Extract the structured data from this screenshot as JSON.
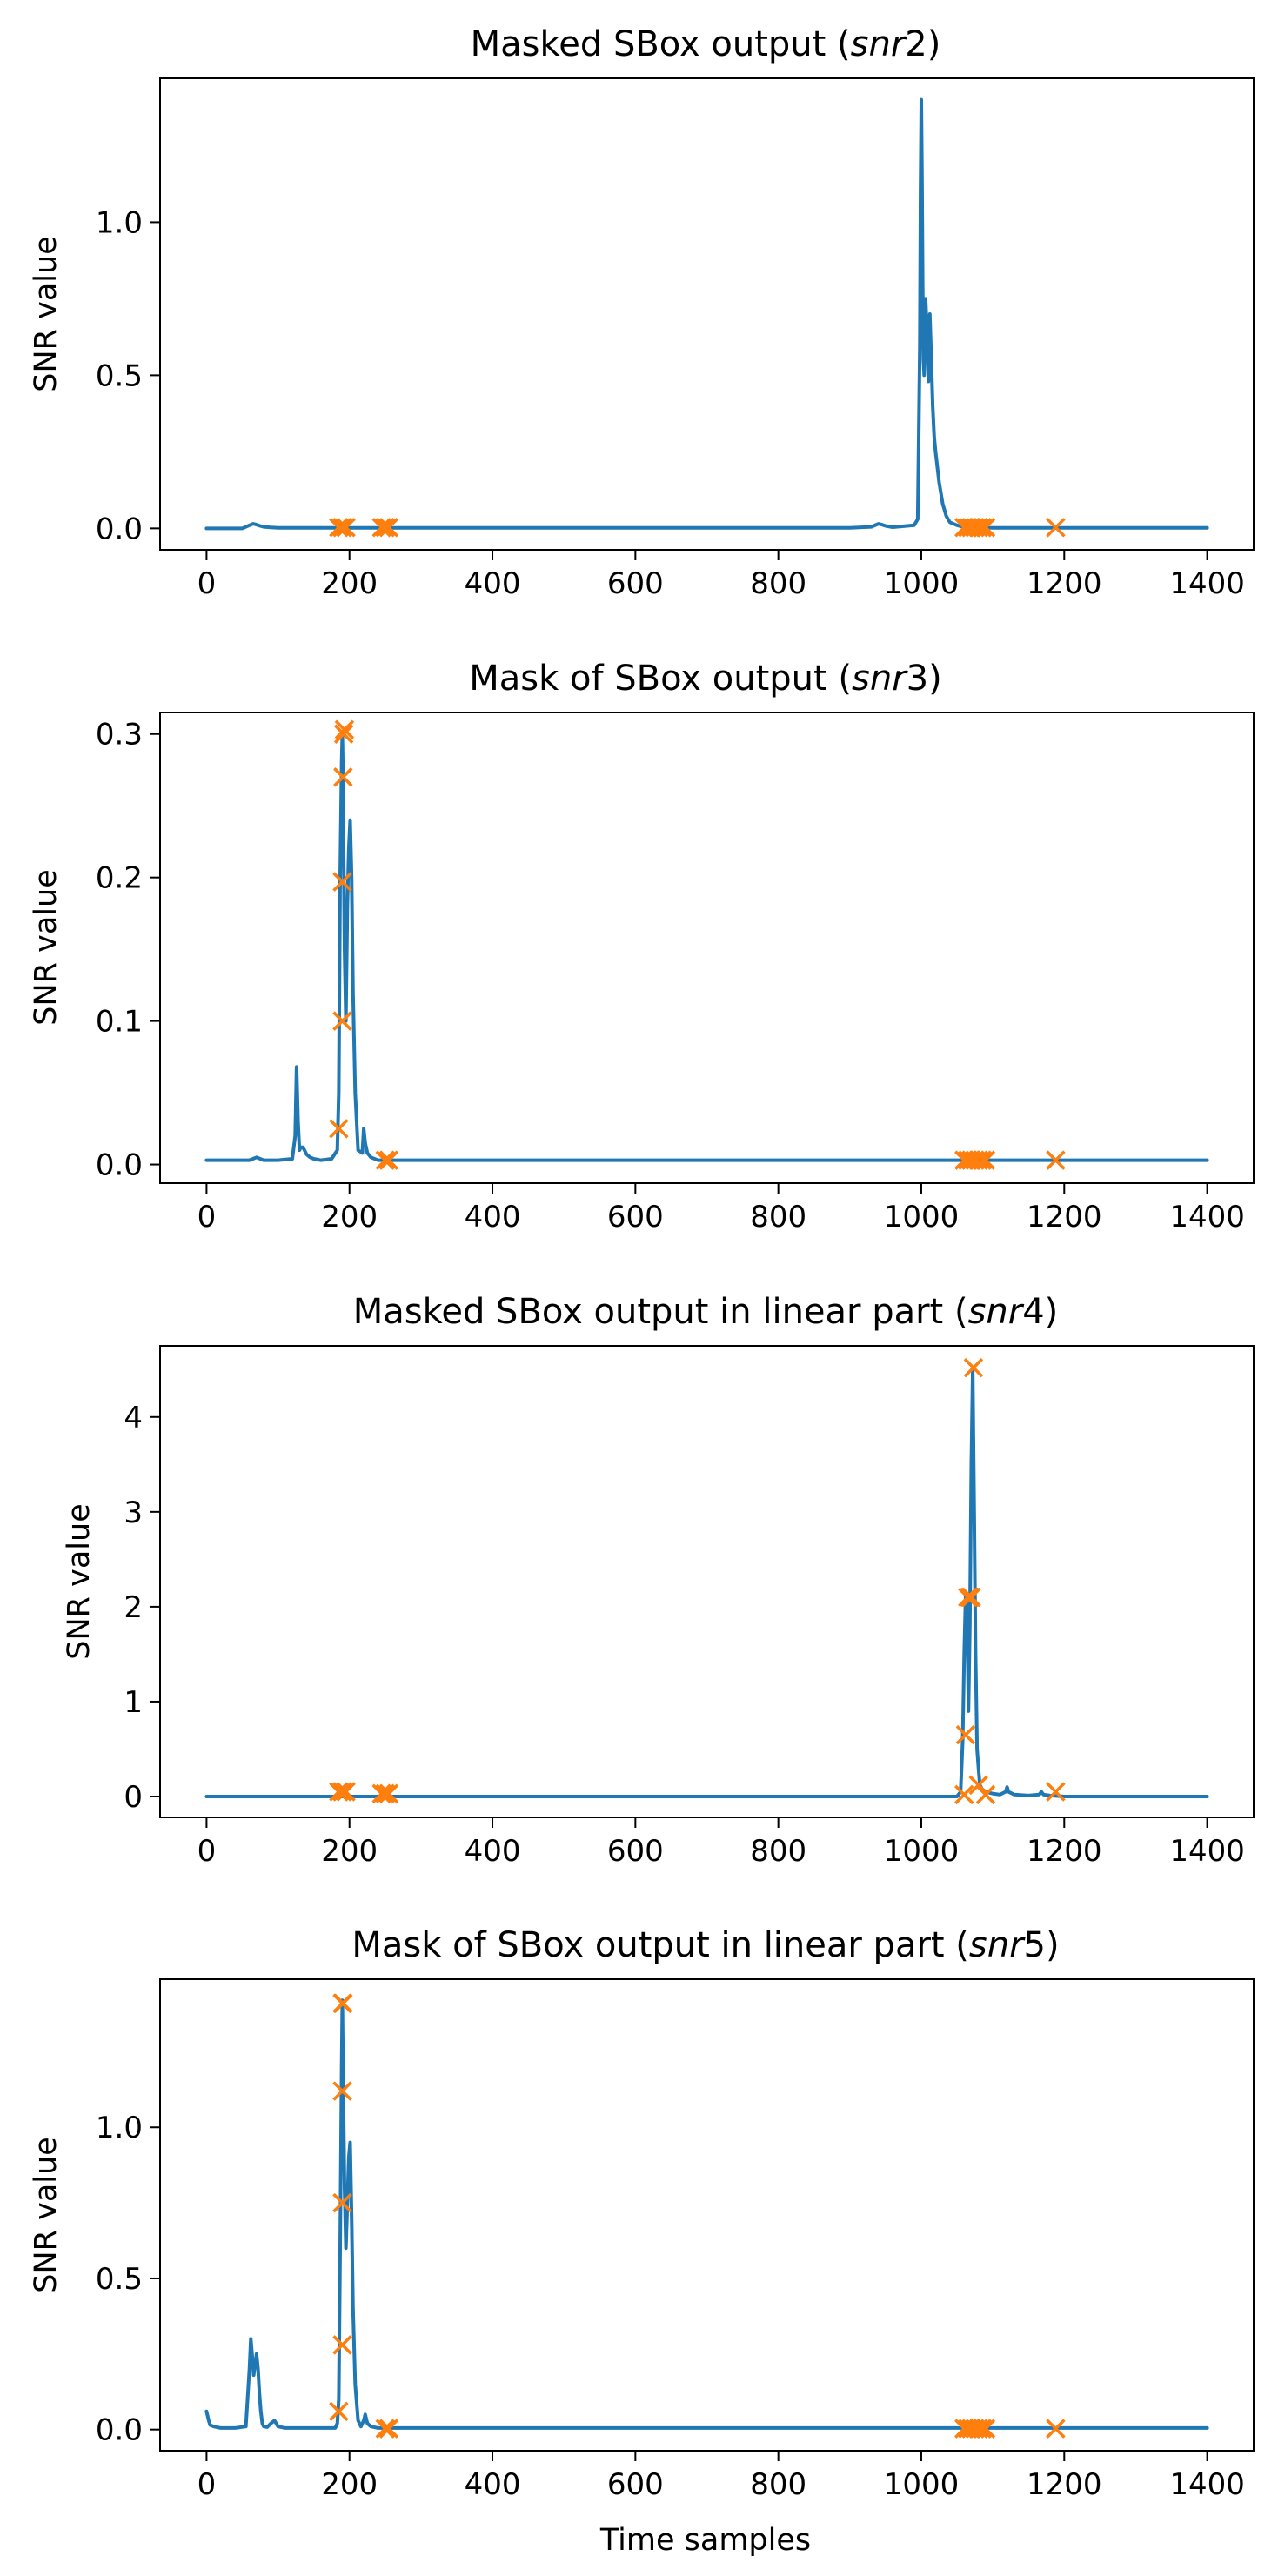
{
  "figure": {
    "colors": {
      "line": "#1f77b4",
      "marker": "#ff7f0e",
      "axes": "#000000",
      "background": "#ffffff"
    }
  },
  "chart_data": [
    {
      "type": "line",
      "title": "Masked SBox output (snr2)",
      "title_main": "Masked SBox output (",
      "title_italic": "snr",
      "title_tail": "2)",
      "xlabel": "",
      "ylabel": "SNR value",
      "xlim": [
        -65,
        1465
      ],
      "ylim": [
        -0.07,
        1.47
      ],
      "xticks": [
        0,
        200,
        400,
        600,
        800,
        1000,
        1200,
        1400
      ],
      "yticks": [
        0.0,
        0.5,
        1.0
      ],
      "ytick_labels": [
        "0.0",
        "0.5",
        "1.0"
      ],
      "grid": false,
      "series": [
        {
          "kind": "line",
          "x": [
            0,
            50,
            60,
            65,
            70,
            75,
            80,
            90,
            100,
            150,
            200,
            300,
            500,
            700,
            900,
            930,
            940,
            945,
            950,
            960,
            990,
            995,
            998,
            999,
            1000,
            1001,
            1002,
            1003,
            1004,
            1006,
            1008,
            1010,
            1012,
            1014,
            1016,
            1018,
            1020,
            1025,
            1030,
            1035,
            1040,
            1050,
            1060,
            1100,
            1200,
            1300,
            1400
          ],
          "y": [
            0.0,
            0.0,
            0.01,
            0.015,
            0.012,
            0.008,
            0.005,
            0.003,
            0.002,
            0.002,
            0.002,
            0.002,
            0.002,
            0.002,
            0.002,
            0.005,
            0.015,
            0.012,
            0.008,
            0.004,
            0.01,
            0.03,
            0.6,
            1.1,
            1.4,
            1.15,
            0.8,
            0.55,
            0.5,
            0.75,
            0.65,
            0.48,
            0.7,
            0.55,
            0.4,
            0.3,
            0.25,
            0.15,
            0.08,
            0.04,
            0.02,
            0.01,
            0.004,
            0.002,
            0.002,
            0.002,
            0.002
          ]
        },
        {
          "kind": "markers",
          "marker": "x",
          "x": [
            185,
            190,
            195,
            245,
            250,
            255,
            1060,
            1065,
            1070,
            1075,
            1080,
            1085,
            1090,
            1188
          ],
          "y": [
            0.003,
            0.003,
            0.003,
            0.003,
            0.003,
            0.003,
            0.003,
            0.003,
            0.003,
            0.003,
            0.003,
            0.003,
            0.003,
            0.003
          ]
        }
      ]
    },
    {
      "type": "line",
      "title": "Mask of SBox output (snr3)",
      "title_main": "Mask of SBox output (",
      "title_italic": "snr",
      "title_tail": "3)",
      "xlabel": "",
      "ylabel": "SNR value",
      "xlim": [
        -65,
        1465
      ],
      "ylim": [
        -0.013,
        0.315
      ],
      "xticks": [
        0,
        200,
        400,
        600,
        800,
        1000,
        1200,
        1400
      ],
      "yticks": [
        0.0,
        0.1,
        0.2,
        0.3
      ],
      "ytick_labels": [
        "0.0",
        "0.1",
        "0.2",
        "0.3"
      ],
      "grid": false,
      "series": [
        {
          "kind": "line",
          "x": [
            0,
            60,
            70,
            80,
            100,
            120,
            124,
            126,
            128,
            130,
            132,
            135,
            140,
            145,
            150,
            160,
            175,
            183,
            185,
            187,
            189,
            190,
            191,
            193,
            195,
            197,
            199,
            201,
            203,
            205,
            208,
            212,
            218,
            220,
            222,
            225,
            230,
            240,
            260,
            300,
            500,
            700,
            900,
            1100,
            1300,
            1400
          ],
          "y": [
            0.003,
            0.003,
            0.005,
            0.003,
            0.003,
            0.004,
            0.02,
            0.068,
            0.03,
            0.01,
            0.012,
            0.012,
            0.007,
            0.005,
            0.004,
            0.003,
            0.004,
            0.01,
            0.05,
            0.2,
            0.28,
            0.3,
            0.27,
            0.15,
            0.1,
            0.18,
            0.22,
            0.24,
            0.2,
            0.12,
            0.05,
            0.01,
            0.008,
            0.025,
            0.015,
            0.008,
            0.005,
            0.003,
            0.003,
            0.003,
            0.003,
            0.003,
            0.003,
            0.003,
            0.003,
            0.003
          ]
        },
        {
          "kind": "markers",
          "marker": "x",
          "x": [
            185,
            190,
            190,
            191,
            192,
            193,
            250,
            255,
            1060,
            1065,
            1070,
            1075,
            1080,
            1085,
            1090,
            1188
          ],
          "y": [
            0.025,
            0.1,
            0.197,
            0.27,
            0.3,
            0.303,
            0.003,
            0.003,
            0.003,
            0.003,
            0.003,
            0.003,
            0.003,
            0.003,
            0.003,
            0.003
          ]
        }
      ]
    },
    {
      "type": "line",
      "title": "Masked SBox output in linear part (snr4)",
      "title_main": "Masked SBox output in linear part (",
      "title_italic": "snr",
      "title_tail": "4)",
      "xlabel": "",
      "ylabel": "SNR value",
      "xlim": [
        -65,
        1465
      ],
      "ylim": [
        -0.22,
        4.75
      ],
      "xticks": [
        0,
        200,
        400,
        600,
        800,
        1000,
        1200,
        1400
      ],
      "yticks": [
        0,
        1,
        2,
        3,
        4
      ],
      "ytick_labels": [
        "0",
        "1",
        "2",
        "3",
        "4"
      ],
      "grid": false,
      "series": [
        {
          "kind": "line",
          "x": [
            0,
            200,
            400,
            600,
            800,
            1000,
            1050,
            1055,
            1058,
            1060,
            1062,
            1064,
            1066,
            1068,
            1070,
            1072,
            1074,
            1076,
            1078,
            1080,
            1082,
            1085,
            1090,
            1100,
            1110,
            1118,
            1120,
            1122,
            1130,
            1150,
            1165,
            1168,
            1171,
            1180,
            1200,
            1300,
            1400
          ],
          "y": [
            0.0,
            0.0,
            0.0,
            0.0,
            0.0,
            0.0,
            0.0,
            0.05,
            0.6,
            1.5,
            2.1,
            2.0,
            0.9,
            1.8,
            3.5,
            4.5,
            3.0,
            1.5,
            0.5,
            0.3,
            0.12,
            0.08,
            0.05,
            0.03,
            0.02,
            0.05,
            0.1,
            0.05,
            0.02,
            0.01,
            0.02,
            0.05,
            0.02,
            0.01,
            0.0,
            0.0,
            0.0
          ]
        },
        {
          "kind": "markers",
          "marker": "x",
          "x": [
            185,
            190,
            195,
            245,
            250,
            255,
            1060,
            1062,
            1065,
            1068,
            1070,
            1073,
            1080,
            1090,
            1188
          ],
          "y": [
            0.05,
            0.05,
            0.05,
            0.03,
            0.03,
            0.03,
            0.02,
            0.65,
            2.1,
            2.1,
            2.1,
            4.52,
            0.12,
            0.02,
            0.05
          ]
        }
      ]
    },
    {
      "type": "line",
      "title": "Mask of SBox output in linear part (snr5)",
      "title_main": "Mask of SBox output in linear part (",
      "title_italic": "snr",
      "title_tail": "5)",
      "xlabel": "Time samples",
      "ylabel": "SNR value",
      "xlim": [
        -65,
        1465
      ],
      "ylim": [
        -0.07,
        1.49
      ],
      "xticks": [
        0,
        200,
        400,
        600,
        800,
        1000,
        1200,
        1400
      ],
      "yticks": [
        0.0,
        0.5,
        1.0
      ],
      "ytick_labels": [
        "0.0",
        "0.5",
        "1.0"
      ],
      "grid": false,
      "series": [
        {
          "kind": "line",
          "x": [
            0,
            3,
            5,
            10,
            20,
            40,
            55,
            60,
            62,
            64,
            66,
            68,
            70,
            72,
            74,
            76,
            78,
            80,
            85,
            90,
            95,
            100,
            110,
            130,
            150,
            170,
            180,
            183,
            185,
            187,
            189,
            190,
            191,
            193,
            195,
            197,
            199,
            201,
            203,
            205,
            208,
            212,
            216,
            220,
            222,
            225,
            230,
            240,
            260,
            300,
            500,
            700,
            900,
            1100,
            1300,
            1400
          ],
          "y": [
            0.06,
            0.03,
            0.015,
            0.01,
            0.005,
            0.005,
            0.01,
            0.2,
            0.3,
            0.24,
            0.18,
            0.22,
            0.25,
            0.2,
            0.12,
            0.06,
            0.02,
            0.01,
            0.008,
            0.02,
            0.03,
            0.01,
            0.005,
            0.005,
            0.005,
            0.005,
            0.005,
            0.02,
            0.1,
            0.6,
            1.2,
            1.42,
            1.2,
            0.8,
            0.6,
            0.75,
            0.9,
            0.95,
            0.7,
            0.4,
            0.15,
            0.03,
            0.01,
            0.03,
            0.05,
            0.02,
            0.01,
            0.005,
            0.005,
            0.005,
            0.005,
            0.005,
            0.005,
            0.005,
            0.005,
            0.005
          ]
        },
        {
          "kind": "markers",
          "marker": "x",
          "x": [
            185,
            190,
            190,
            190,
            190,
            191,
            250,
            255,
            1060,
            1065,
            1070,
            1075,
            1080,
            1085,
            1090,
            1188
          ],
          "y": [
            0.06,
            0.28,
            0.75,
            1.12,
            1.41,
            1.41,
            0.003,
            0.003,
            0.003,
            0.003,
            0.003,
            0.003,
            0.003,
            0.003,
            0.003,
            0.003
          ]
        }
      ]
    }
  ]
}
